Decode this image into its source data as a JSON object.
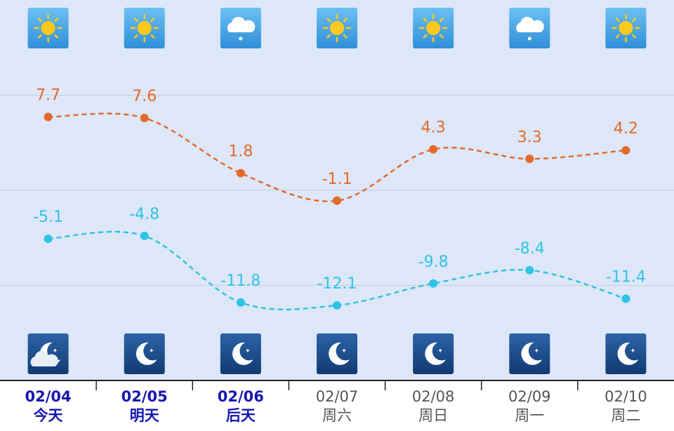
{
  "chart_data": {
    "type": "line",
    "categories": [
      "02/04",
      "02/05",
      "02/06",
      "02/07",
      "02/08",
      "02/09",
      "02/10"
    ],
    "weekdays": [
      "今天",
      "明天",
      "后天",
      "周六",
      "周日",
      "周一",
      "周二"
    ],
    "series": [
      {
        "name": "high",
        "color": "#e4692b",
        "values": [
          7.7,
          7.6,
          1.8,
          -1.1,
          4.3,
          3.3,
          4.2
        ]
      },
      {
        "name": "low",
        "color": "#2fc3e6",
        "values": [
          -5.1,
          -4.8,
          -11.8,
          -12.1,
          -9.8,
          -8.4,
          -11.4
        ]
      }
    ],
    "ylim": [
      -20,
      20
    ],
    "yticks": [
      -10,
      0,
      10
    ],
    "grid": true
  }
}
